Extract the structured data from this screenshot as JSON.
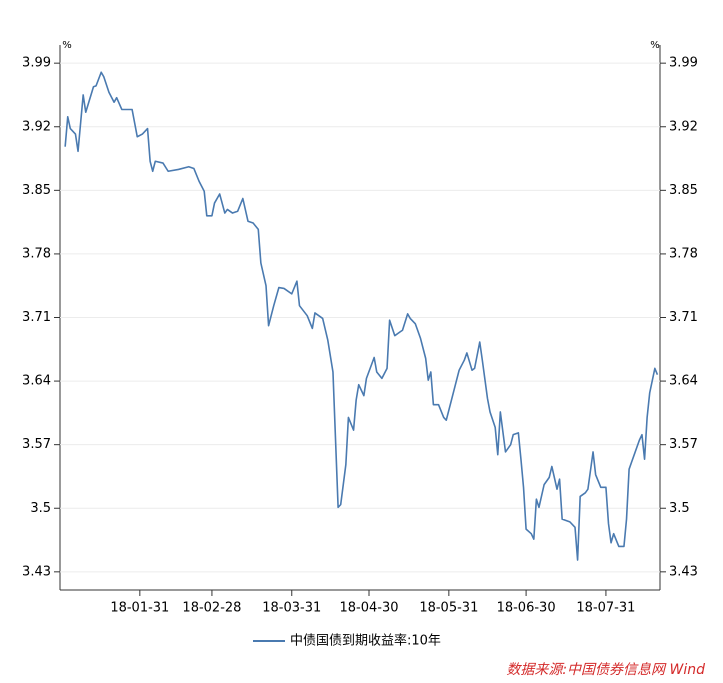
{
  "chart_data": {
    "type": "line",
    "y_unit": "%",
    "y2_unit": "%",
    "x": [
      "18-01-02",
      "18-01-03",
      "18-01-04",
      "18-01-06",
      "18-01-07",
      "18-01-09",
      "18-01-10",
      "18-01-13",
      "18-01-14",
      "18-01-16",
      "18-01-17",
      "18-01-19",
      "18-01-21",
      "18-01-22",
      "18-01-24",
      "18-01-28",
      "18-01-30",
      "18-02-01",
      "18-02-03",
      "18-02-04",
      "18-02-05",
      "18-02-06",
      "18-02-09",
      "18-02-11",
      "18-02-15",
      "18-02-19",
      "18-02-21",
      "18-02-23",
      "18-02-25",
      "18-02-26",
      "18-02-28",
      "18-03-01",
      "18-03-03",
      "18-03-05",
      "18-03-06",
      "18-03-08",
      "18-03-10",
      "18-03-12",
      "18-03-14",
      "18-03-16",
      "18-03-18",
      "18-03-19",
      "18-03-21",
      "18-03-22",
      "18-03-24",
      "18-03-26",
      "18-03-28",
      "18-03-31",
      "18-04-02",
      "18-04-03",
      "18-04-06",
      "18-04-08",
      "18-04-09",
      "18-04-12",
      "18-04-14",
      "18-04-16",
      "18-04-18",
      "18-04-19",
      "18-04-21",
      "18-04-22",
      "18-04-24",
      "18-04-25",
      "18-04-26",
      "18-04-28",
      "18-04-29",
      "18-05-02",
      "18-05-03",
      "18-05-05",
      "18-05-07",
      "18-05-08",
      "18-05-10",
      "18-05-12",
      "18-05-13",
      "18-05-15",
      "18-05-16",
      "18-05-18",
      "18-05-20",
      "18-05-22",
      "18-05-23",
      "18-05-24",
      "18-05-25",
      "18-05-27",
      "18-05-29",
      "18-05-30",
      "18-06-01",
      "18-06-02",
      "18-06-04",
      "18-06-06",
      "18-06-07",
      "18-06-09",
      "18-06-10",
      "18-06-12",
      "18-06-13",
      "18-06-15",
      "18-06-16",
      "18-06-18",
      "18-06-19",
      "18-06-20",
      "18-06-22",
      "18-06-24",
      "18-06-25",
      "18-06-27",
      "18-06-28",
      "18-06-29",
      "18-06-30",
      "18-07-02",
      "18-07-03",
      "18-07-04",
      "18-07-05",
      "18-07-07",
      "18-07-09",
      "18-07-10",
      "18-07-12",
      "18-07-13",
      "18-07-14",
      "18-07-17",
      "18-07-19",
      "18-07-20",
      "18-07-21",
      "18-07-23",
      "18-07-24",
      "18-07-26",
      "18-07-27",
      "18-07-29",
      "18-07-31",
      "18-08-01",
      "18-08-02",
      "18-08-03",
      "18-08-05",
      "18-08-07",
      "18-08-08",
      "18-08-09",
      "18-08-10",
      "18-08-12",
      "18-08-13",
      "18-08-14",
      "18-08-15",
      "18-08-16",
      "18-08-17",
      "18-08-19",
      "18-08-20"
    ],
    "series": [
      {
        "name": "中债国债到期收益率:10年",
        "color": "#4a7ab0",
        "axis": "y",
        "values": [
          3.898,
          3.931,
          3.918,
          3.912,
          3.893,
          3.955,
          3.936,
          3.964,
          3.965,
          3.98,
          3.975,
          3.958,
          3.947,
          3.952,
          3.939,
          3.939,
          3.909,
          3.912,
          3.918,
          3.882,
          3.871,
          3.882,
          3.88,
          3.871,
          3.873,
          3.876,
          3.874,
          3.86,
          3.849,
          3.822,
          3.822,
          3.836,
          3.846,
          3.825,
          3.829,
          3.825,
          3.827,
          3.841,
          3.816,
          3.814,
          3.807,
          3.77,
          3.745,
          3.701,
          3.723,
          3.743,
          3.742,
          3.736,
          3.75,
          3.723,
          3.712,
          3.698,
          3.715,
          3.709,
          3.685,
          3.65,
          3.501,
          3.504,
          3.548,
          3.6,
          3.586,
          3.619,
          3.636,
          3.624,
          3.643,
          3.666,
          3.65,
          3.643,
          3.654,
          3.707,
          3.69,
          3.694,
          3.696,
          3.714,
          3.709,
          3.703,
          3.687,
          3.665,
          3.641,
          3.65,
          3.614,
          3.614,
          3.6,
          3.597,
          3.619,
          3.63,
          3.652,
          3.663,
          3.671,
          3.652,
          3.654,
          3.683,
          3.663,
          3.621,
          3.606,
          3.589,
          3.559,
          3.606,
          3.562,
          3.57,
          3.581,
          3.583,
          3.554,
          3.523,
          3.477,
          3.472,
          3.466,
          3.51,
          3.501,
          3.526,
          3.534,
          3.546,
          3.521,
          3.532,
          3.488,
          3.485,
          3.479,
          3.443,
          3.513,
          3.517,
          3.521,
          3.562,
          3.537,
          3.523,
          3.523,
          3.483,
          3.462,
          3.472,
          3.458,
          3.458,
          3.488,
          3.543,
          3.551,
          3.567,
          3.575,
          3.581,
          3.554,
          3.6,
          3.627,
          3.654,
          3.647
        ]
      }
    ],
    "xlim": [
      "17-12-31",
      "18-08-21"
    ],
    "xticks": [
      "18-01-31",
      "18-02-28",
      "18-03-31",
      "18-04-30",
      "18-05-31",
      "18-06-30",
      "18-07-31"
    ],
    "ylim": [
      3.41,
      4.01
    ],
    "yticks": [
      3.43,
      3.5,
      3.57,
      3.64,
      3.71,
      3.78,
      3.85,
      3.92,
      3.99
    ],
    "y2lim": [
      3.41,
      4.01
    ],
    "y2ticks": [
      3.43,
      3.5,
      3.57,
      3.64,
      3.71,
      3.78,
      3.85,
      3.92,
      3.99
    ],
    "grid": true,
    "legend": "bottom",
    "source": "数据来源:中国债券信息网 Wind"
  }
}
